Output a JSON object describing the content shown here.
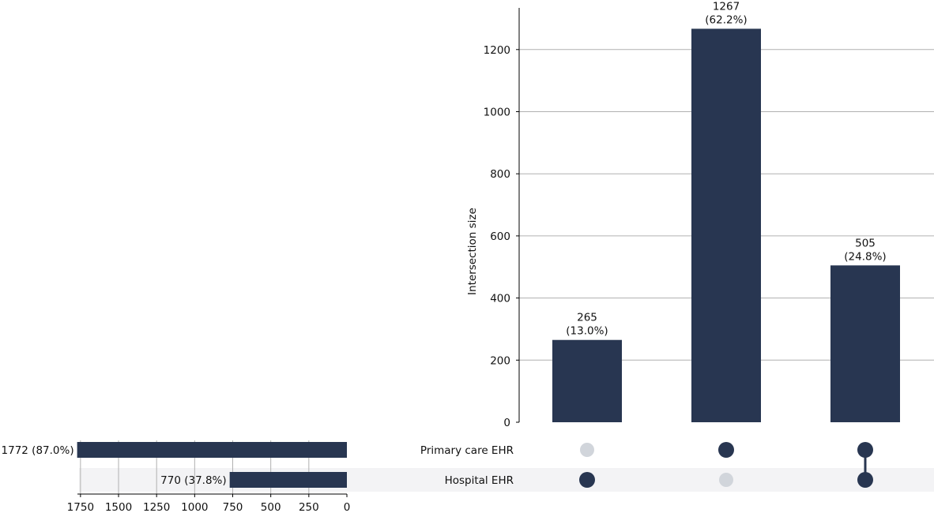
{
  "colors": {
    "bar": "#283651",
    "dot_inactive": "#d1d5db",
    "grid": "#b0b0b0",
    "row_shade": "#f3f3f5",
    "axis": "#000000"
  },
  "chart_data": {
    "type": "bar",
    "subtype": "upset",
    "intersections": {
      "ylabel": "Intersection size",
      "ylim": [
        0,
        1330
      ],
      "yticks": [
        0,
        200,
        400,
        600,
        800,
        1000,
        1200
      ],
      "grid": true,
      "values": [
        265,
        1267,
        505
      ],
      "labels": [
        {
          "count": "265",
          "pct": "(13.0%)"
        },
        {
          "count": "1267",
          "pct": "(62.2%)"
        },
        {
          "count": "505",
          "pct": "(24.8%)"
        }
      ],
      "membership": [
        [
          false,
          true
        ],
        [
          true,
          false
        ],
        [
          true,
          true
        ]
      ]
    },
    "sets": {
      "names": [
        "Primary care EHR",
        "Hospital EHR"
      ],
      "sizes": [
        1772,
        770
      ],
      "labels": [
        "1772 (87.0%)",
        "770 (37.8%)"
      ],
      "xlim": [
        1770,
        0
      ],
      "xticks": [
        1750,
        1500,
        1250,
        1000,
        750,
        500,
        250,
        0
      ],
      "grid": true
    }
  }
}
